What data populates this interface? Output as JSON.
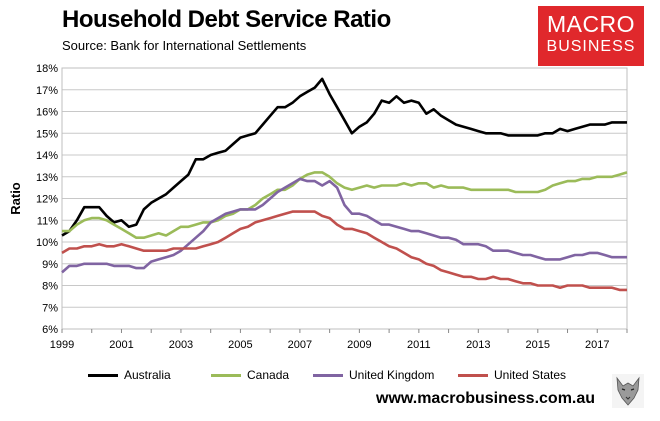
{
  "header": {
    "title": "Household Debt Service Ratio",
    "source": "Source: Bank for International Settlements"
  },
  "logo": {
    "line1": "MACRO",
    "line2": "BUSINESS",
    "color": "#e0282c"
  },
  "footer": {
    "url": "www.macrobusiness.com.au"
  },
  "chart_data": {
    "type": "line",
    "ylabel": "Ratio",
    "xlabel": "",
    "ylim": [
      6,
      18
    ],
    "xlim": [
      1999,
      2018
    ],
    "yticks": [
      "6%",
      "7%",
      "8%",
      "9%",
      "10%",
      "11%",
      "12%",
      "13%",
      "14%",
      "15%",
      "16%",
      "17%",
      "18%"
    ],
    "xticks": [
      "1999",
      "2001",
      "2003",
      "2005",
      "2007",
      "2009",
      "2011",
      "2013",
      "2015",
      "2017"
    ],
    "grid": "horizontal",
    "legend": "bottom",
    "series": [
      {
        "name": "Australia",
        "color": "#000000",
        "x": [
          1999.0,
          1999.25,
          1999.5,
          1999.75,
          2000.0,
          2000.25,
          2000.5,
          2000.75,
          2001.0,
          2001.25,
          2001.5,
          2001.75,
          2002.0,
          2002.25,
          2002.5,
          2002.75,
          2003.0,
          2003.25,
          2003.5,
          2003.75,
          2004.0,
          2004.25,
          2004.5,
          2004.75,
          2005.0,
          2005.25,
          2005.5,
          2005.75,
          2006.0,
          2006.25,
          2006.5,
          2006.75,
          2007.0,
          2007.25,
          2007.5,
          2007.75,
          2008.0,
          2008.25,
          2008.5,
          2008.75,
          2009.0,
          2009.25,
          2009.5,
          2009.75,
          2010.0,
          2010.25,
          2010.5,
          2010.75,
          2011.0,
          2011.25,
          2011.5,
          2011.75,
          2012.0,
          2012.25,
          2012.5,
          2012.75,
          2013.0,
          2013.25,
          2013.5,
          2013.75,
          2014.0,
          2014.25,
          2014.5,
          2014.75,
          2015.0,
          2015.25,
          2015.5,
          2015.75,
          2016.0,
          2016.25,
          2016.5,
          2016.75,
          2017.0,
          2017.25,
          2017.5,
          2017.75,
          2018.0
        ],
        "values": [
          10.3,
          10.5,
          11.0,
          11.6,
          11.6,
          11.6,
          11.2,
          10.9,
          11.0,
          10.7,
          10.8,
          11.5,
          11.8,
          12.0,
          12.2,
          12.5,
          12.8,
          13.1,
          13.8,
          13.8,
          14.0,
          14.1,
          14.2,
          14.5,
          14.8,
          14.9,
          15.0,
          15.4,
          15.8,
          16.2,
          16.2,
          16.4,
          16.7,
          16.9,
          17.1,
          17.5,
          16.8,
          16.2,
          15.6,
          15.0,
          15.3,
          15.5,
          15.9,
          16.5,
          16.4,
          16.7,
          16.4,
          16.5,
          16.4,
          15.9,
          16.1,
          15.8,
          15.6,
          15.4,
          15.3,
          15.2,
          15.1,
          15.0,
          15.0,
          15.0,
          14.9,
          14.9,
          14.9,
          14.9,
          14.9,
          15.0,
          15.0,
          15.2,
          15.1,
          15.2,
          15.3,
          15.4,
          15.4,
          15.4,
          15.5,
          15.5,
          15.5
        ]
      },
      {
        "name": "Canada",
        "color": "#9bbb59",
        "x": [
          1999.0,
          1999.25,
          1999.5,
          1999.75,
          2000.0,
          2000.25,
          2000.5,
          2000.75,
          2001.0,
          2001.25,
          2001.5,
          2001.75,
          2002.0,
          2002.25,
          2002.5,
          2002.75,
          2003.0,
          2003.25,
          2003.5,
          2003.75,
          2004.0,
          2004.25,
          2004.5,
          2004.75,
          2005.0,
          2005.25,
          2005.5,
          2005.75,
          2006.0,
          2006.25,
          2006.5,
          2006.75,
          2007.0,
          2007.25,
          2007.5,
          2007.75,
          2008.0,
          2008.25,
          2008.5,
          2008.75,
          2009.0,
          2009.25,
          2009.5,
          2009.75,
          2010.0,
          2010.25,
          2010.5,
          2010.75,
          2011.0,
          2011.25,
          2011.5,
          2011.75,
          2012.0,
          2012.25,
          2012.5,
          2012.75,
          2013.0,
          2013.25,
          2013.5,
          2013.75,
          2014.0,
          2014.25,
          2014.5,
          2014.75,
          2015.0,
          2015.25,
          2015.5,
          2015.75,
          2016.0,
          2016.25,
          2016.5,
          2016.75,
          2017.0,
          2017.25,
          2017.5,
          2017.75,
          2018.0
        ],
        "values": [
          10.5,
          10.5,
          10.8,
          11.0,
          11.1,
          11.1,
          11.0,
          10.8,
          10.6,
          10.4,
          10.2,
          10.2,
          10.3,
          10.4,
          10.3,
          10.5,
          10.7,
          10.7,
          10.8,
          10.9,
          10.9,
          11.0,
          11.2,
          11.3,
          11.5,
          11.5,
          11.7,
          12.0,
          12.2,
          12.4,
          12.4,
          12.6,
          12.9,
          13.1,
          13.2,
          13.2,
          13.0,
          12.7,
          12.5,
          12.4,
          12.5,
          12.6,
          12.5,
          12.6,
          12.6,
          12.6,
          12.7,
          12.6,
          12.7,
          12.7,
          12.5,
          12.6,
          12.5,
          12.5,
          12.5,
          12.4,
          12.4,
          12.4,
          12.4,
          12.4,
          12.4,
          12.3,
          12.3,
          12.3,
          12.3,
          12.4,
          12.6,
          12.7,
          12.8,
          12.8,
          12.9,
          12.9,
          13.0,
          13.0,
          13.0,
          13.1,
          13.2
        ]
      },
      {
        "name": "United Kingdom",
        "color": "#8064a2",
        "x": [
          1999.0,
          1999.25,
          1999.5,
          1999.75,
          2000.0,
          2000.25,
          2000.5,
          2000.75,
          2001.0,
          2001.25,
          2001.5,
          2001.75,
          2002.0,
          2002.25,
          2002.5,
          2002.75,
          2003.0,
          2003.25,
          2003.5,
          2003.75,
          2004.0,
          2004.25,
          2004.5,
          2004.75,
          2005.0,
          2005.25,
          2005.5,
          2005.75,
          2006.0,
          2006.25,
          2006.5,
          2006.75,
          2007.0,
          2007.25,
          2007.5,
          2007.75,
          2008.0,
          2008.25,
          2008.5,
          2008.75,
          2009.0,
          2009.25,
          2009.5,
          2009.75,
          2010.0,
          2010.25,
          2010.5,
          2010.75,
          2011.0,
          2011.25,
          2011.5,
          2011.75,
          2012.0,
          2012.25,
          2012.5,
          2012.75,
          2013.0,
          2013.25,
          2013.5,
          2013.75,
          2014.0,
          2014.25,
          2014.5,
          2014.75,
          2015.0,
          2015.25,
          2015.5,
          2015.75,
          2016.0,
          2016.25,
          2016.5,
          2016.75,
          2017.0,
          2017.25,
          2017.5,
          2017.75,
          2018.0
        ],
        "values": [
          8.6,
          8.9,
          8.9,
          9.0,
          9.0,
          9.0,
          9.0,
          8.9,
          8.9,
          8.9,
          8.8,
          8.8,
          9.1,
          9.2,
          9.3,
          9.4,
          9.6,
          9.9,
          10.2,
          10.5,
          10.9,
          11.1,
          11.3,
          11.4,
          11.5,
          11.5,
          11.5,
          11.7,
          12.0,
          12.3,
          12.5,
          12.7,
          12.9,
          12.8,
          12.8,
          12.6,
          12.8,
          12.5,
          11.7,
          11.3,
          11.3,
          11.2,
          11.0,
          10.8,
          10.8,
          10.7,
          10.6,
          10.5,
          10.5,
          10.4,
          10.3,
          10.2,
          10.2,
          10.1,
          9.9,
          9.9,
          9.9,
          9.8,
          9.6,
          9.6,
          9.6,
          9.5,
          9.4,
          9.4,
          9.3,
          9.2,
          9.2,
          9.2,
          9.3,
          9.4,
          9.4,
          9.5,
          9.5,
          9.4,
          9.3,
          9.3,
          9.3
        ]
      },
      {
        "name": "United States",
        "color": "#c0504d",
        "x": [
          1999.0,
          1999.25,
          1999.5,
          1999.75,
          2000.0,
          2000.25,
          2000.5,
          2000.75,
          2001.0,
          2001.25,
          2001.5,
          2001.75,
          2002.0,
          2002.25,
          2002.5,
          2002.75,
          2003.0,
          2003.25,
          2003.5,
          2003.75,
          2004.0,
          2004.25,
          2004.5,
          2004.75,
          2005.0,
          2005.25,
          2005.5,
          2005.75,
          2006.0,
          2006.25,
          2006.5,
          2006.75,
          2007.0,
          2007.25,
          2007.5,
          2007.75,
          2008.0,
          2008.25,
          2008.5,
          2008.75,
          2009.0,
          2009.25,
          2009.5,
          2009.75,
          2010.0,
          2010.25,
          2010.5,
          2010.75,
          2011.0,
          2011.25,
          2011.5,
          2011.75,
          2012.0,
          2012.25,
          2012.5,
          2012.75,
          2013.0,
          2013.25,
          2013.5,
          2013.75,
          2014.0,
          2014.25,
          2014.5,
          2014.75,
          2015.0,
          2015.25,
          2015.5,
          2015.75,
          2016.0,
          2016.25,
          2016.5,
          2016.75,
          2017.0,
          2017.25,
          2017.5,
          2017.75,
          2018.0
        ],
        "values": [
          9.5,
          9.7,
          9.7,
          9.8,
          9.8,
          9.9,
          9.8,
          9.8,
          9.9,
          9.8,
          9.7,
          9.6,
          9.6,
          9.6,
          9.6,
          9.7,
          9.7,
          9.7,
          9.7,
          9.8,
          9.9,
          10.0,
          10.2,
          10.4,
          10.6,
          10.7,
          10.9,
          11.0,
          11.1,
          11.2,
          11.3,
          11.4,
          11.4,
          11.4,
          11.4,
          11.2,
          11.1,
          10.8,
          10.6,
          10.6,
          10.5,
          10.4,
          10.2,
          10.0,
          9.8,
          9.7,
          9.5,
          9.3,
          9.2,
          9.0,
          8.9,
          8.7,
          8.6,
          8.5,
          8.4,
          8.4,
          8.3,
          8.3,
          8.4,
          8.3,
          8.3,
          8.2,
          8.1,
          8.1,
          8.0,
          8.0,
          8.0,
          7.9,
          8.0,
          8.0,
          8.0,
          7.9,
          7.9,
          7.9,
          7.9,
          7.8,
          7.8
        ]
      }
    ]
  }
}
